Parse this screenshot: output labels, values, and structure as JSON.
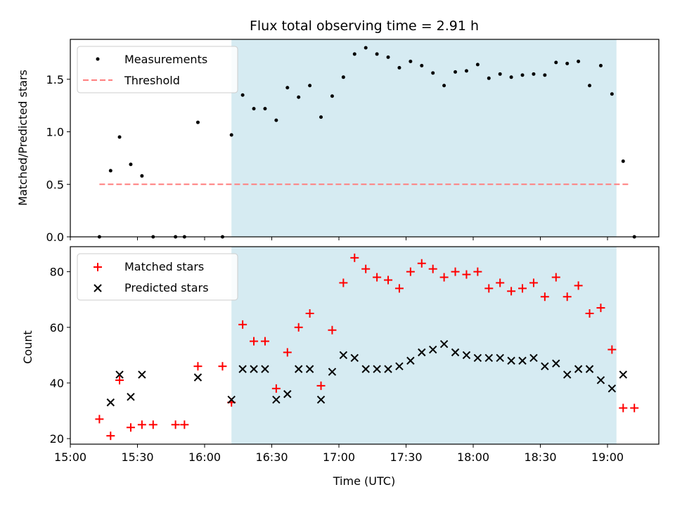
{
  "chart_data": [
    {
      "type": "scatter",
      "title": "Flux total observing time = 2.91 h",
      "xlabel": "",
      "ylabel": "Matched/Predicted stars",
      "ylim": [
        0,
        1.88
      ],
      "yticks": [
        "0.0",
        "0.5",
        "1.0",
        "1.5"
      ],
      "highlight_span": [
        "16:12",
        "19:04"
      ],
      "legend": {
        "placement": "top-left",
        "entries": [
          "Measurements",
          "Threshold"
        ]
      },
      "threshold": {
        "name": "Threshold",
        "value": 0.5,
        "x_range": [
          "15:13",
          "19:10"
        ],
        "color": "#ff7f7f"
      },
      "series": [
        {
          "name": "Measurements",
          "color": "#000000",
          "x": [
            "15:13",
            "15:18",
            "15:22",
            "15:27",
            "15:32",
            "15:37",
            "15:47",
            "15:51",
            "15:57",
            "16:08",
            "16:12",
            "16:17",
            "16:22",
            "16:27",
            "16:32",
            "16:37",
            "16:42",
            "16:47",
            "16:52",
            "16:57",
            "17:02",
            "17:07",
            "17:12",
            "17:17",
            "17:22",
            "17:27",
            "17:32",
            "17:37",
            "17:42",
            "17:47",
            "17:52",
            "17:57",
            "18:02",
            "18:07",
            "18:12",
            "18:17",
            "18:22",
            "18:27",
            "18:32",
            "18:37",
            "18:42",
            "18:47",
            "18:52",
            "18:57",
            "19:02",
            "19:07",
            "19:12"
          ],
          "y": [
            0.0,
            0.63,
            0.95,
            0.69,
            0.58,
            0.0,
            0.0,
            0.0,
            1.09,
            0.0,
            0.97,
            1.35,
            1.22,
            1.22,
            1.11,
            1.42,
            1.33,
            1.44,
            1.14,
            1.34,
            1.52,
            1.74,
            1.8,
            1.74,
            1.71,
            1.61,
            1.67,
            1.63,
            1.56,
            1.44,
            1.57,
            1.58,
            1.64,
            1.51,
            1.55,
            1.52,
            1.54,
            1.55,
            1.54,
            1.66,
            1.65,
            1.67,
            1.44,
            1.63,
            1.36,
            0.72,
            0.0
          ]
        }
      ]
    },
    {
      "type": "scatter",
      "title": "",
      "xlabel": "Time (UTC)",
      "ylabel": "Count",
      "ylim": [
        18,
        89
      ],
      "yticks": [
        "20",
        "40",
        "60",
        "80"
      ],
      "xticks": [
        "15:00",
        "15:30",
        "16:00",
        "16:30",
        "17:00",
        "17:30",
        "18:00",
        "18:30",
        "19:00"
      ],
      "highlight_span": [
        "16:12",
        "19:04"
      ],
      "legend": {
        "placement": "top-left",
        "entries": [
          "Matched stars",
          "Predicted stars"
        ]
      },
      "series": [
        {
          "name": "Matched stars",
          "color": "#ff0000",
          "marker": "+",
          "x": [
            "15:13",
            "15:18",
            "15:22",
            "15:27",
            "15:32",
            "15:37",
            "15:47",
            "15:51",
            "15:57",
            "16:08",
            "16:12",
            "16:17",
            "16:22",
            "16:27",
            "16:32",
            "16:37",
            "16:42",
            "16:47",
            "16:52",
            "16:57",
            "17:02",
            "17:07",
            "17:12",
            "17:17",
            "17:22",
            "17:27",
            "17:32",
            "17:37",
            "17:42",
            "17:47",
            "17:52",
            "17:57",
            "18:02",
            "18:07",
            "18:12",
            "18:17",
            "18:22",
            "18:27",
            "18:32",
            "18:37",
            "18:42",
            "18:47",
            "18:52",
            "18:57",
            "19:02",
            "19:07",
            "19:12"
          ],
          "y": [
            27,
            21,
            41,
            24,
            25,
            25,
            25,
            25,
            46,
            46,
            33,
            61,
            55,
            55,
            38,
            51,
            60,
            65,
            39,
            59,
            76,
            85,
            81,
            78,
            77,
            74,
            80,
            83,
            81,
            78,
            80,
            79,
            80,
            74,
            76,
            73,
            74,
            76,
            71,
            78,
            71,
            75,
            65,
            67,
            52,
            31,
            31
          ]
        },
        {
          "name": "Predicted stars",
          "color": "#000000",
          "marker": "x",
          "x": [
            "15:18",
            "15:22",
            "15:27",
            "15:32",
            "15:57",
            "16:12",
            "16:17",
            "16:22",
            "16:27",
            "16:32",
            "16:37",
            "16:42",
            "16:47",
            "16:52",
            "16:57",
            "17:02",
            "17:07",
            "17:12",
            "17:17",
            "17:22",
            "17:27",
            "17:32",
            "17:37",
            "17:42",
            "17:47",
            "17:52",
            "17:57",
            "18:02",
            "18:07",
            "18:12",
            "18:17",
            "18:22",
            "18:27",
            "18:32",
            "18:37",
            "18:42",
            "18:47",
            "18:52",
            "18:57",
            "19:02",
            "19:07"
          ],
          "y": [
            33,
            43,
            35,
            43,
            42,
            34,
            45,
            45,
            45,
            34,
            36,
            45,
            45,
            34,
            44,
            50,
            49,
            45,
            45,
            45,
            46,
            48,
            51,
            52,
            54,
            51,
            50,
            49,
            49,
            49,
            48,
            48,
            49,
            46,
            47,
            43,
            45,
            45,
            41,
            38,
            43
          ]
        }
      ]
    }
  ]
}
